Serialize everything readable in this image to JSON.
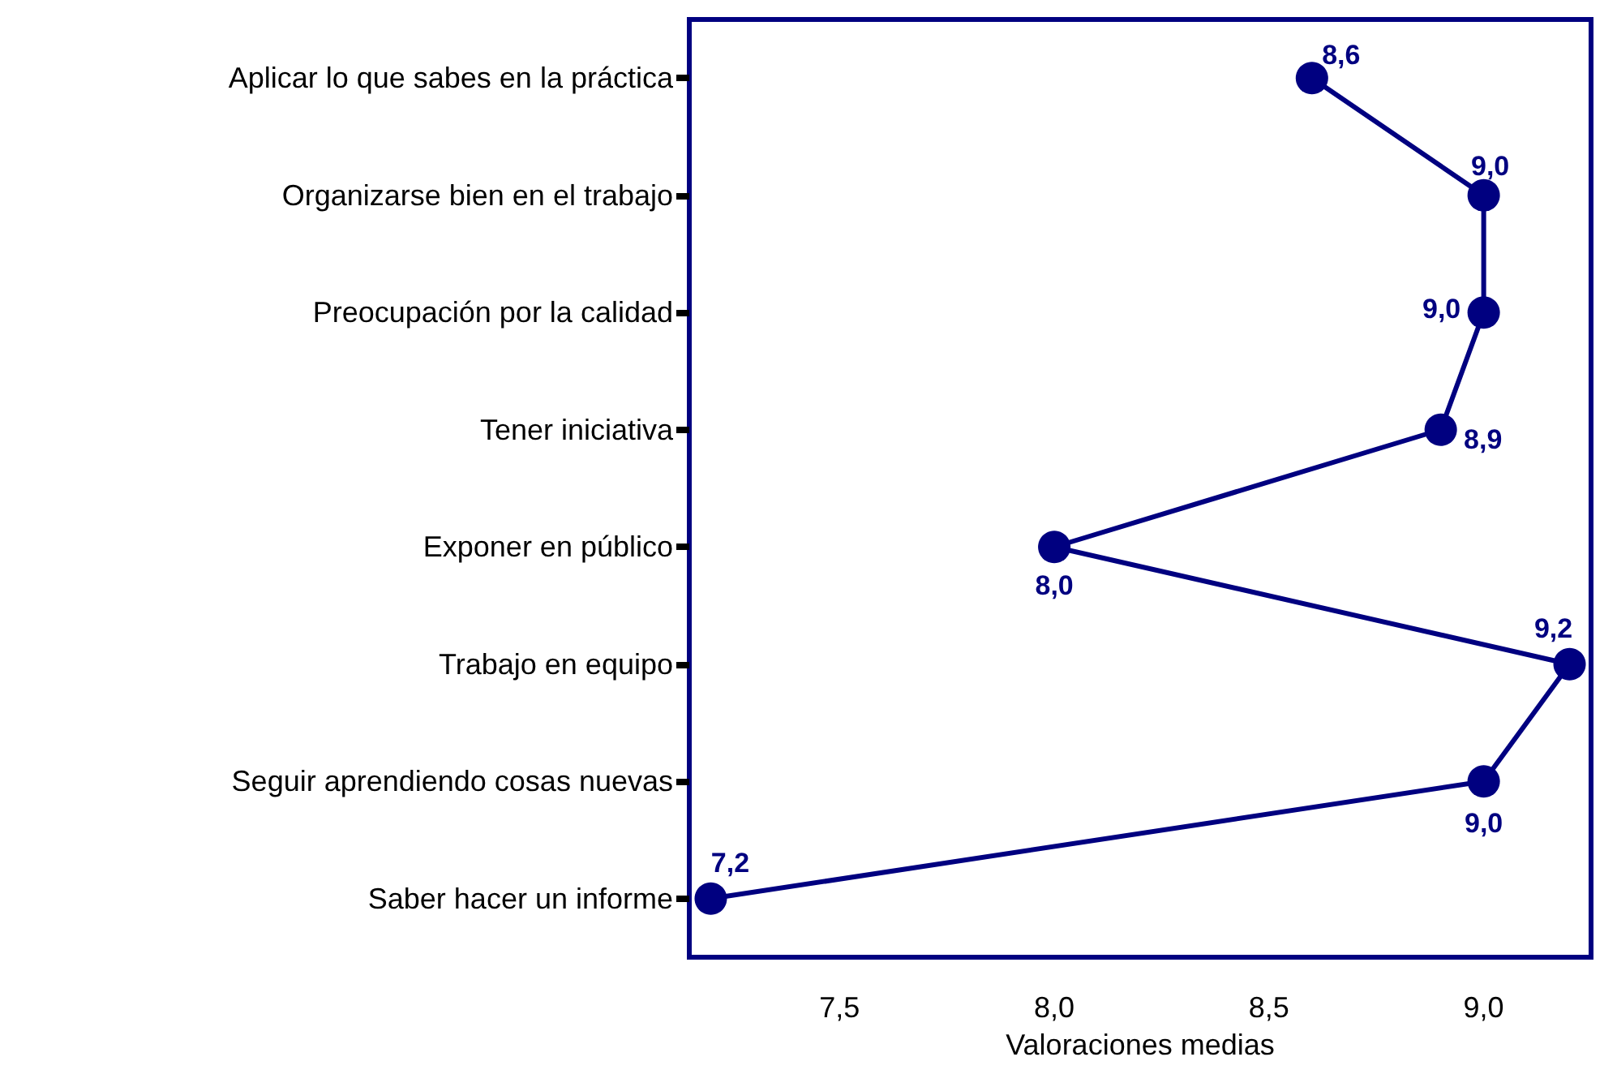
{
  "chart_data": {
    "type": "line",
    "orientation": "horizontal",
    "xlabel": "Valoraciones medias",
    "categories": [
      "Aplicar lo que sabes en la práctica",
      "Organizarse bien en el trabajo",
      "Preocupación por la calidad",
      "Tener iniciativa",
      "Exponer en público",
      "Trabajo en equipo",
      "Seguir aprendiendo cosas nuevas",
      "Saber hacer un informe"
    ],
    "series": [
      {
        "color": "#000080",
        "values": [
          8.6,
          9.0,
          9.0,
          8.9,
          8.0,
          9.2,
          9.0,
          7.2
        ],
        "value_labels": [
          "8,6",
          "9,0",
          "9,0",
          "8,9",
          "8,0",
          "9,2",
          "9,0",
          "7,2"
        ]
      }
    ],
    "xlim": [
      7.15,
      9.25
    ],
    "xticks": [
      {
        "value": 7.5,
        "label": "7,5"
      },
      {
        "value": 8,
        "label": "8,0"
      },
      {
        "value": 8.5,
        "label": "8,5"
      },
      {
        "value": 9,
        "label": "9,0"
      }
    ],
    "grid": false,
    "marker": "circle",
    "line_style": "solid"
  }
}
